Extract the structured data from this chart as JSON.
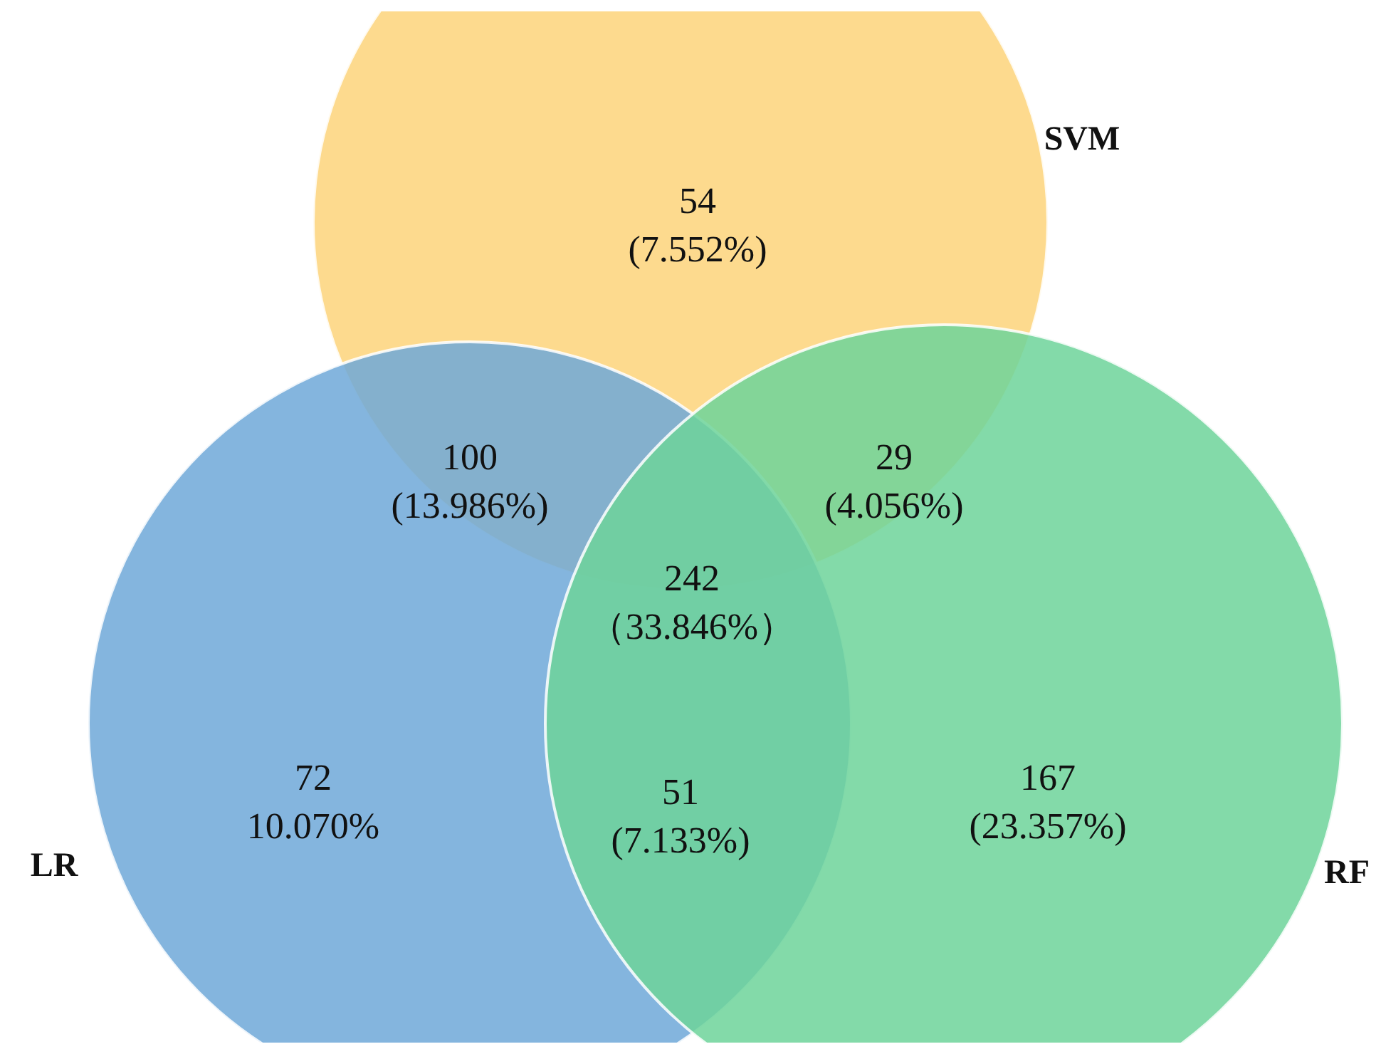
{
  "chart_data": {
    "type": "other",
    "categories": [
      "54",
      "100",
      "29",
      "242",
      "72",
      "51",
      "167"
    ],
    "values": [
      7.552,
      13.986,
      4.056,
      33.846,
      10.07,
      7.133,
      23.357
    ],
    "value_labels": [
      "(7.552%)",
      "(13.986%)",
      "(4.056%)",
      "（33.846%）",
      "10.070%",
      "(7.133%)",
      "(23.357%)"
    ],
    "annotations": [
      "SVM",
      "LR",
      "RF"
    ]
  }
}
